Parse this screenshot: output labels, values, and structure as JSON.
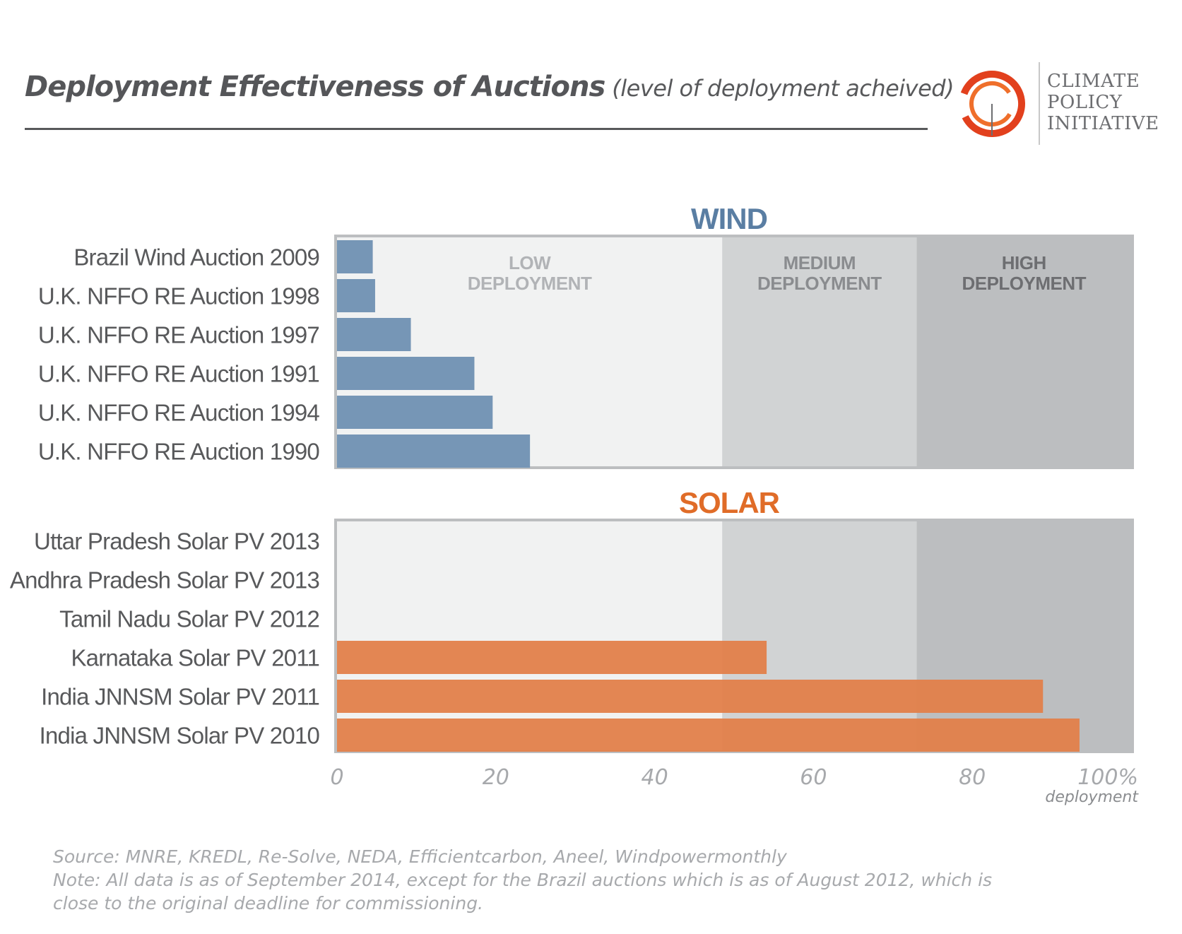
{
  "header": {
    "title": "Deployment Effectiveness of Auctions",
    "subtitle": "(level of deployment acheived)"
  },
  "logo": {
    "name": "climate-policy-initiative-logo",
    "lines": [
      "CLIMATE",
      "POLICY",
      "INITIATIVE"
    ],
    "colors": {
      "ring": "#e2401d",
      "inner": "#ef6f2b"
    }
  },
  "chart_data": {
    "type": "bar",
    "orientation": "horizontal",
    "x_axis": {
      "range": [
        0,
        100
      ],
      "ticks": [
        {
          "value": 0,
          "label": "0"
        },
        {
          "value": 20,
          "label": "20"
        },
        {
          "value": 40,
          "label": "40"
        },
        {
          "value": 60,
          "label": "60"
        },
        {
          "value": 80,
          "label": "80"
        },
        {
          "value": 100,
          "label": "100%"
        }
      ],
      "label": "deployment"
    },
    "zones": [
      {
        "from": 0,
        "to": 48.5,
        "label": "LOW DEPLOYMENT",
        "lines": [
          "LOW",
          "DEPLOYMENT"
        ],
        "color": "#f1f2f2",
        "text_color": "#b1b3b6"
      },
      {
        "from": 48.5,
        "to": 73,
        "label": "MEDIUM DEPLOYMENT",
        "lines": [
          "MEDIUM",
          "DEPLOYMENT"
        ],
        "color": "#d1d3d4",
        "text_color": "#8a8c8f"
      },
      {
        "from": 73,
        "to": 100,
        "label": "HIGH DEPLOYMENT",
        "lines": [
          "HIGH",
          "DEPLOYMENT"
        ],
        "color": "#bcbec0",
        "text_color": "#6d6e71"
      }
    ],
    "panels": [
      {
        "name": "WIND",
        "title_color": "#5a7ea3",
        "bar_color": "#7696b6",
        "categories": [
          "Brazil Wind Auction 2009",
          "U.K. NFFO RE Auction 1998",
          "U.K. NFFO RE Auction 1997",
          "U.K. NFFO RE Auction 1991",
          "U.K. NFFO RE Auction 1994",
          "U.K. NFFO RE Auction 1990"
        ],
        "values": [
          4.5,
          4.8,
          9.3,
          17.3,
          19.6,
          24.3
        ]
      },
      {
        "name": "SOLAR",
        "title_color": "#e06c28",
        "bar_color": "#e2804a",
        "categories": [
          "Uttar Pradesh Solar PV 2013",
          "Andhra Pradesh Solar PV 2013",
          "Tamil Nadu Solar PV 2012",
          "Karnataka Solar PV 2011",
          "India JNNSM Solar PV 2011",
          "India JNNSM Solar PV 2010"
        ],
        "values": [
          0,
          0,
          0,
          54.1,
          88.9,
          93.5
        ]
      }
    ]
  },
  "footer": {
    "source": "Source: MNRE, KREDL, Re-Solve, NEDA, Efficientcarbon, Aneel, Windpowermonthly",
    "note_line1": "Note: All data is as of September 2014, except for the Brazil auctions which is as of August 2012, which is",
    "note_line2": "close to the original deadline for commissioning."
  }
}
